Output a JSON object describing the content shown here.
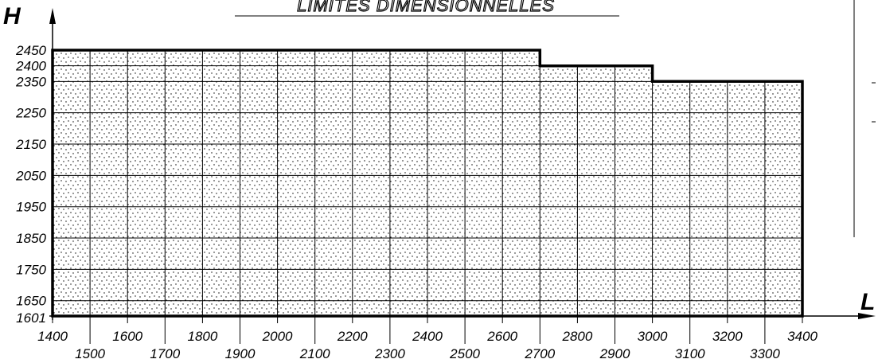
{
  "title": "LIMITES DIMENSIONNELLES",
  "axes": {
    "x_name": "L",
    "y_name": "H"
  },
  "chart_data": {
    "type": "area",
    "x_ticks_upper": [
      1400,
      1600,
      1800,
      2000,
      2200,
      2400,
      2600,
      2800,
      3000,
      3200,
      3400
    ],
    "x_ticks_lower": [
      1500,
      1700,
      1900,
      2100,
      2300,
      2500,
      2700,
      2900,
      3100,
      3300
    ],
    "y_ticks": [
      1601,
      1650,
      1750,
      1850,
      1950,
      2050,
      2150,
      2250,
      2350,
      2400,
      2450
    ],
    "xlim": [
      1400,
      3400
    ],
    "ylim": [
      1601,
      2450
    ],
    "outline": [
      {
        "x": 1400,
        "y": 1601
      },
      {
        "x": 1400,
        "y": 2450
      },
      {
        "x": 2700,
        "y": 2450
      },
      {
        "x": 2700,
        "y": 2400
      },
      {
        "x": 3000,
        "y": 2400
      },
      {
        "x": 3000,
        "y": 2350
      },
      {
        "x": 3400,
        "y": 2350
      },
      {
        "x": 3400,
        "y": 1601
      }
    ],
    "grid": true,
    "fill": "dotted hatch"
  }
}
